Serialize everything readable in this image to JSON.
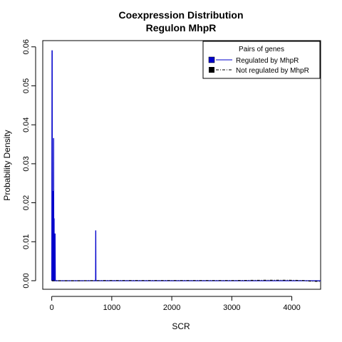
{
  "chart_data": {
    "type": "line",
    "title": "Coexpression Distribution",
    "subtitle": "Regulon MhpR",
    "xlabel": "SCR",
    "ylabel": "Probability Density",
    "xlim": [
      -150,
      4480
    ],
    "ylim": [
      -0.0022,
      0.0616
    ],
    "x_ticks": [
      0,
      1000,
      2000,
      3000,
      4000
    ],
    "y_ticks": [
      0.0,
      0.01,
      0.02,
      0.03,
      0.04,
      0.05,
      0.06
    ],
    "y_tick_labels": [
      "0.00",
      "0.01",
      "0.02",
      "0.03",
      "0.04",
      "0.05",
      "0.06"
    ],
    "grid": false,
    "legend": {
      "title": "Pairs of genes",
      "placement": "top-right",
      "entries": [
        {
          "label": "Regulated by  MhpR",
          "color": "#0000cc",
          "line": "solid"
        },
        {
          "label": "Not regulated by  MhpR",
          "color": "#000000",
          "line": "dashdot"
        }
      ]
    },
    "series": [
      {
        "name": "Regulated by  MhpR",
        "color": "#0000cc",
        "x": [
          0,
          4,
          8,
          10,
          12,
          15,
          18,
          20,
          22,
          25,
          28,
          30,
          32,
          35,
          38,
          40,
          42,
          45,
          48,
          52,
          56,
          60,
          62,
          65,
          70,
          80,
          120,
          300,
          500,
          700,
          728,
          730,
          732,
          734,
          736,
          740,
          800,
          1000,
          2000,
          3000,
          4000,
          4480
        ],
        "y": [
          0,
          0.059,
          0.059,
          0.0,
          0.0,
          0.023,
          0.0,
          0.0,
          0.0,
          0.0,
          0.0,
          0.0365,
          0.0365,
          0.0,
          0.0,
          0.016,
          0.0,
          0.0,
          0.0,
          0.012,
          0.012,
          0.0,
          0.0,
          0.0,
          0.0,
          0.0,
          0.0,
          0.0,
          0.0,
          0.0,
          0.0,
          0.0,
          0.0128,
          0.0128,
          0.0,
          0.0,
          0.0,
          0.0,
          0.0,
          0.0,
          0.0,
          0.0
        ]
      },
      {
        "name": "Not regulated by  MhpR",
        "color": "#000000",
        "x": [
          0,
          500,
          1000,
          1500,
          2000,
          2500,
          3000,
          3500,
          3800,
          4000,
          4200,
          4300,
          4480
        ],
        "y": [
          0.0,
          0.0,
          5e-05,
          5e-05,
          5e-05,
          5e-05,
          5e-05,
          0.0001,
          0.00012,
          0.0001,
          5e-05,
          -0.0001,
          -0.0002
        ]
      }
    ]
  }
}
